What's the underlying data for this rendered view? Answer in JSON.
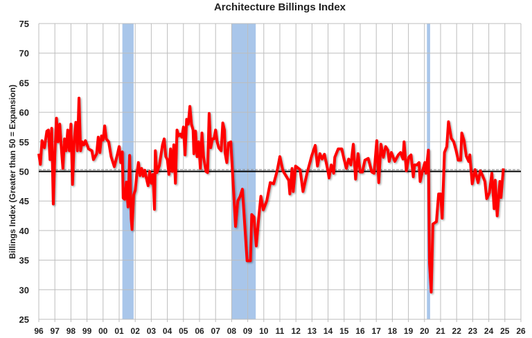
{
  "chart_data": {
    "type": "line",
    "title": "Architecture Billings Index",
    "xlabel": "",
    "ylabel": "Billings Index (Greater than 50 = Expansion)",
    "ylim": [
      25,
      75
    ],
    "xlim": [
      1996,
      2026
    ],
    "yticks": [
      25,
      30,
      35,
      40,
      45,
      50,
      55,
      60,
      65,
      70,
      75
    ],
    "xtick_labels": [
      "96",
      "97",
      "98",
      "99",
      "00",
      "01",
      "02",
      "03",
      "04",
      "05",
      "06",
      "07",
      "08",
      "09",
      "10",
      "11",
      "12",
      "13",
      "14",
      "15",
      "16",
      "17",
      "18",
      "19",
      "20",
      "21",
      "22",
      "23",
      "24",
      "25",
      "26"
    ],
    "grid": true,
    "reference_line": 50,
    "average_line": 50.3,
    "colors": {
      "series": "#ff0000",
      "recession": "#a9c6ea",
      "grid": "#bdbdbd",
      "reference": "#000000",
      "average": "#888888"
    },
    "recessions": [
      [
        2001.2,
        2001.9
      ],
      [
        2008.0,
        2009.5
      ],
      [
        2020.15,
        2020.35
      ]
    ],
    "series": [
      {
        "name": "Architecture Billings Index",
        "points": [
          [
            1996.0,
            53
          ],
          [
            1996.1,
            51.2
          ],
          [
            1996.2,
            55.2
          ],
          [
            1996.35,
            54
          ],
          [
            1996.5,
            56.8
          ],
          [
            1996.6,
            57
          ],
          [
            1996.7,
            52
          ],
          [
            1996.8,
            57.3
          ],
          [
            1996.9,
            44.5
          ],
          [
            1997.0,
            53
          ],
          [
            1997.1,
            59
          ],
          [
            1997.2,
            55
          ],
          [
            1997.3,
            58
          ],
          [
            1997.4,
            54
          ],
          [
            1997.5,
            50.5
          ],
          [
            1997.6,
            55.5
          ],
          [
            1997.7,
            53.5
          ],
          [
            1997.8,
            57
          ],
          [
            1997.9,
            53.5
          ],
          [
            1998.0,
            58
          ],
          [
            1998.1,
            47.8
          ],
          [
            1998.2,
            55
          ],
          [
            1998.3,
            58.3
          ],
          [
            1998.4,
            53.5
          ],
          [
            1998.5,
            62.4
          ],
          [
            1998.6,
            53.5
          ],
          [
            1998.7,
            55
          ],
          [
            1998.8,
            54.5
          ],
          [
            1998.9,
            55.2
          ],
          [
            1999.1,
            53.8
          ],
          [
            1999.3,
            53.5
          ],
          [
            1999.4,
            52
          ],
          [
            1999.6,
            53
          ],
          [
            1999.7,
            55.8
          ],
          [
            1999.8,
            53.2
          ],
          [
            1999.9,
            56
          ],
          [
            2000.0,
            55.3
          ],
          [
            2000.1,
            57.7
          ],
          [
            2000.2,
            55.5
          ],
          [
            2000.35,
            55
          ],
          [
            2000.5,
            52.5
          ],
          [
            2000.7,
            50.8
          ],
          [
            2000.9,
            53
          ],
          [
            2001.0,
            54.2
          ],
          [
            2001.1,
            51.5
          ],
          [
            2001.2,
            53.3
          ],
          [
            2001.25,
            45.5
          ],
          [
            2001.35,
            45.3
          ],
          [
            2001.45,
            48.2
          ],
          [
            2001.55,
            44
          ],
          [
            2001.65,
            52.7
          ],
          [
            2001.75,
            42
          ],
          [
            2001.8,
            40.2
          ],
          [
            2001.9,
            46
          ],
          [
            2002.0,
            46.8
          ],
          [
            2002.1,
            49.5
          ],
          [
            2002.2,
            51.5
          ],
          [
            2002.3,
            49.3
          ],
          [
            2002.4,
            50.5
          ],
          [
            2002.5,
            49.2
          ],
          [
            2002.6,
            50.2
          ],
          [
            2002.7,
            48.8
          ],
          [
            2002.8,
            47.6
          ],
          [
            2002.9,
            50
          ],
          [
            2003.0,
            48
          ],
          [
            2003.1,
            49.5
          ],
          [
            2003.2,
            43.6
          ],
          [
            2003.25,
            53.5
          ],
          [
            2003.35,
            49.8
          ],
          [
            2003.5,
            51
          ],
          [
            2003.7,
            54.5
          ],
          [
            2003.8,
            55.5
          ],
          [
            2003.9,
            52.5
          ],
          [
            2004.0,
            52
          ],
          [
            2004.1,
            49.5
          ],
          [
            2004.2,
            53.8
          ],
          [
            2004.3,
            50
          ],
          [
            2004.4,
            54.5
          ],
          [
            2004.5,
            48
          ],
          [
            2004.6,
            57
          ],
          [
            2004.7,
            56
          ],
          [
            2004.8,
            56.3
          ],
          [
            2004.9,
            55.8
          ],
          [
            2005.0,
            57.5
          ],
          [
            2005.1,
            52.8
          ],
          [
            2005.2,
            58.8
          ],
          [
            2005.3,
            58
          ],
          [
            2005.4,
            61
          ],
          [
            2005.5,
            58
          ],
          [
            2005.6,
            57
          ],
          [
            2005.65,
            53
          ],
          [
            2005.75,
            56.8
          ],
          [
            2005.85,
            52.5
          ],
          [
            2005.95,
            55
          ],
          [
            2006.05,
            50.5
          ],
          [
            2006.15,
            56.5
          ],
          [
            2006.25,
            52.5
          ],
          [
            2006.4,
            50
          ],
          [
            2006.5,
            49.8
          ],
          [
            2006.6,
            59.8
          ],
          [
            2006.7,
            54
          ],
          [
            2006.8,
            55.5
          ],
          [
            2006.9,
            55.5
          ],
          [
            2007.0,
            57
          ],
          [
            2007.1,
            55
          ],
          [
            2007.2,
            54
          ],
          [
            2007.35,
            53.5
          ],
          [
            2007.45,
            58.2
          ],
          [
            2007.55,
            57
          ],
          [
            2007.6,
            53
          ],
          [
            2007.7,
            51.5
          ],
          [
            2007.8,
            54.8
          ],
          [
            2007.95,
            55.0
          ],
          [
            2008.24,
            40.7
          ],
          [
            2008.38,
            45.0
          ],
          [
            2008.53,
            45.8
          ],
          [
            2008.67,
            47.0
          ],
          [
            2008.96,
            34.9
          ],
          [
            2009.17,
            34.9
          ],
          [
            2009.25,
            42.7
          ],
          [
            2009.39,
            42.3
          ],
          [
            2009.53,
            37.4
          ],
          [
            2009.68,
            42.1
          ],
          [
            2009.82,
            45.8
          ],
          [
            2009.97,
            43.5
          ],
          [
            2010.18,
            45.0
          ],
          [
            2010.4,
            48.1
          ],
          [
            2010.61,
            47.9
          ],
          [
            2010.83,
            50.1
          ],
          [
            2011.0,
            52.5
          ],
          [
            2011.19,
            50.1
          ],
          [
            2011.55,
            48.5
          ],
          [
            2011.62,
            46.2
          ],
          [
            2011.76,
            50.5
          ],
          [
            2011.83,
            46.6
          ],
          [
            2011.98,
            50.9
          ],
          [
            2012.26,
            50.3
          ],
          [
            2012.44,
            46.6
          ],
          [
            2012.69,
            49.7
          ],
          [
            2012.98,
            52.6
          ],
          [
            2013.2,
            54.4
          ],
          [
            2013.34,
            50.9
          ],
          [
            2013.49,
            53.0
          ],
          [
            2013.63,
            52.1
          ],
          [
            2013.77,
            52.9
          ],
          [
            2013.99,
            50.1
          ],
          [
            2014.06,
            48.9
          ],
          [
            2014.2,
            51.1
          ],
          [
            2014.35,
            49.7
          ],
          [
            2014.42,
            52.4
          ],
          [
            2014.63,
            53.8
          ],
          [
            2014.85,
            53.8
          ],
          [
            2014.99,
            52.1
          ],
          [
            2015.14,
            50.5
          ],
          [
            2015.28,
            52.1
          ],
          [
            2015.42,
            51.1
          ],
          [
            2015.57,
            54.6
          ],
          [
            2015.71,
            48.7
          ],
          [
            2015.86,
            53.0
          ],
          [
            2016.0,
            49.9
          ],
          [
            2016.14,
            49.9
          ],
          [
            2016.29,
            51.9
          ],
          [
            2016.5,
            52.2
          ],
          [
            2016.72,
            49.9
          ],
          [
            2016.86,
            49.7
          ],
          [
            2017.03,
            55.2
          ],
          [
            2017.15,
            48.1
          ],
          [
            2017.29,
            54.6
          ],
          [
            2017.44,
            52.4
          ],
          [
            2017.58,
            54.2
          ],
          [
            2017.72,
            53.6
          ],
          [
            2017.8,
            51.7
          ],
          [
            2017.94,
            53.2
          ],
          [
            2018.15,
            51.7
          ],
          [
            2018.37,
            52.8
          ],
          [
            2018.51,
            53.2
          ],
          [
            2018.66,
            52.1
          ],
          [
            2018.73,
            55.0
          ],
          [
            2018.87,
            50.1
          ],
          [
            2019.02,
            52.4
          ],
          [
            2019.16,
            52.8
          ],
          [
            2019.3,
            49.1
          ],
          [
            2019.38,
            51.1
          ],
          [
            2019.52,
            51.1
          ],
          [
            2019.66,
            51.5
          ],
          [
            2019.73,
            48.3
          ],
          [
            2019.88,
            50.1
          ],
          [
            2020.02,
            51.5
          ],
          [
            2020.09,
            49.7
          ],
          [
            2020.24,
            53.6
          ],
          [
            2020.31,
            34.5
          ],
          [
            2020.42,
            29.6
          ],
          [
            2020.52,
            41.1
          ],
          [
            2020.74,
            41.5
          ],
          [
            2020.88,
            46.2
          ],
          [
            2021.0,
            46.2
          ],
          [
            2021.1,
            42.1
          ],
          [
            2021.24,
            53.2
          ],
          [
            2021.39,
            54.2
          ],
          [
            2021.49,
            58.4
          ],
          [
            2021.67,
            55.6
          ],
          [
            2021.82,
            55.0
          ],
          [
            2021.96,
            53.6
          ],
          [
            2022.1,
            51.9
          ],
          [
            2022.25,
            51.9
          ],
          [
            2022.32,
            56.5
          ],
          [
            2022.46,
            55.2
          ],
          [
            2022.6,
            52.6
          ],
          [
            2022.75,
            51.7
          ],
          [
            2022.82,
            52.8
          ],
          [
            2022.97,
            47.9
          ],
          [
            2023.15,
            50.3
          ],
          [
            2023.33,
            48.1
          ],
          [
            2023.47,
            50.1
          ],
          [
            2023.61,
            49.3
          ],
          [
            2023.76,
            48.3
          ],
          [
            2023.87,
            45.4
          ],
          [
            2024.04,
            46.4
          ],
          [
            2024.19,
            49.7
          ],
          [
            2024.33,
            43.7
          ],
          [
            2024.4,
            48.5
          ],
          [
            2024.52,
            42.5
          ],
          [
            2024.69,
            48.3
          ],
          [
            2024.76,
            45.6
          ],
          [
            2024.91,
            50.5
          ]
        ]
      }
    ]
  }
}
